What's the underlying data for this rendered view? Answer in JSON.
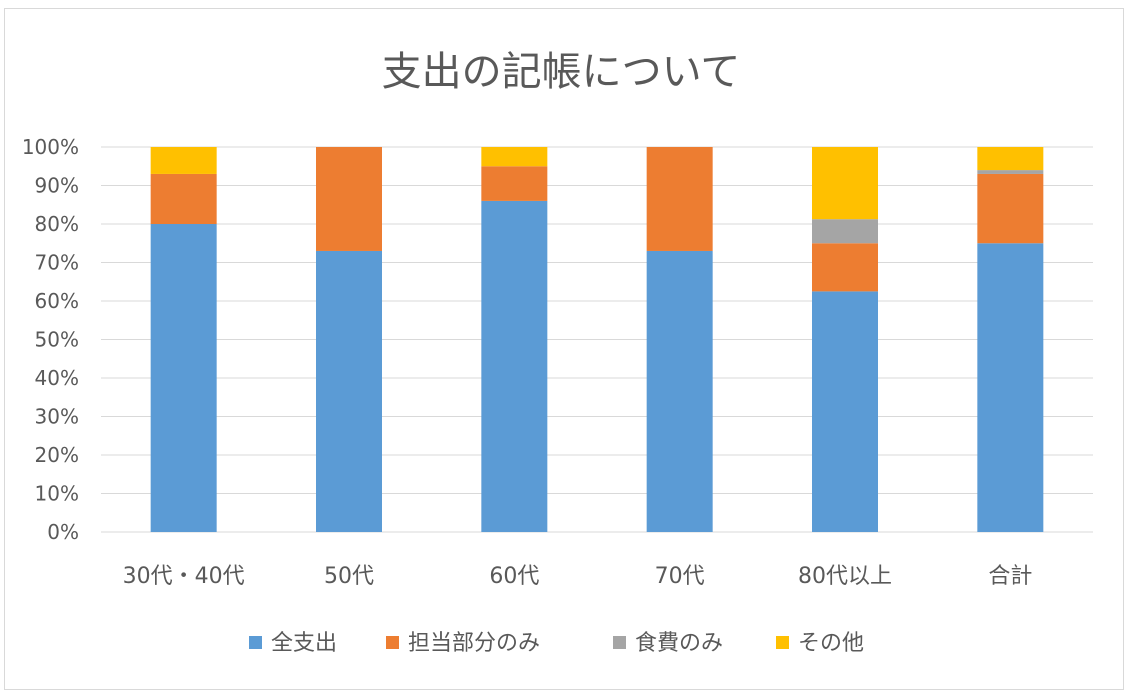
{
  "chart_data": {
    "type": "bar",
    "stacked": true,
    "title": "支出の記帳について",
    "categories": [
      "30代・40代",
      "50代",
      "60代",
      "70代",
      "80代以上",
      "合計"
    ],
    "series": [
      {
        "name": "全支出",
        "color": "#5B9BD5",
        "values": [
          80,
          73,
          86,
          73,
          62.5,
          75
        ]
      },
      {
        "name": "担当部分のみ",
        "color": "#ED7D31",
        "values": [
          13,
          27,
          9,
          27,
          12.5,
          18
        ]
      },
      {
        "name": "食費のみ",
        "color": "#A5A5A5",
        "values": [
          0,
          0,
          0,
          0,
          6.25,
          1
        ]
      },
      {
        "name": "その他",
        "color": "#FFC000",
        "values": [
          7,
          0,
          5,
          0,
          18.75,
          6
        ]
      }
    ],
    "ylim": [
      0,
      100
    ],
    "yticks": [
      "0%",
      "10%",
      "20%",
      "30%",
      "40%",
      "50%",
      "60%",
      "70%",
      "80%",
      "90%",
      "100%"
    ],
    "grid": true,
    "legend_position": "bottom"
  }
}
